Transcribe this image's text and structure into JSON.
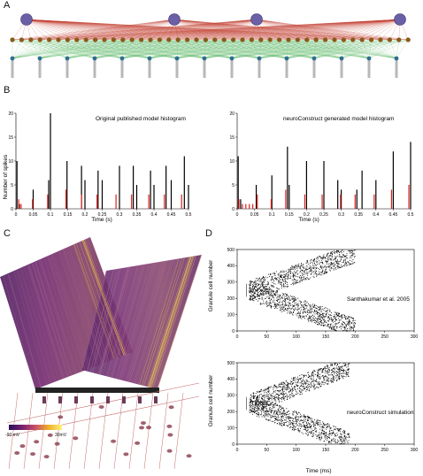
{
  "panels": {
    "a": "A",
    "b": "B",
    "c": "C",
    "d": "D"
  },
  "histograms": [
    {
      "title": "Original published model histogram",
      "ylabel": "Number of spikes",
      "xlabel": "Time (s)",
      "xticks": [
        "0",
        "0.05",
        "0.1",
        "0.15",
        "0.2",
        "0.25",
        "0.3",
        "0.35",
        "0.4",
        "0.45",
        "0.5"
      ],
      "yticks": [
        "0",
        "5",
        "10",
        "15",
        "20"
      ]
    },
    {
      "title": "neuroConstruct generated model histogram",
      "ylabel": "",
      "xlabel": "Time (s)",
      "xticks": [
        "0",
        "0.05",
        "0.1",
        "0.15",
        "0.2",
        "0.25",
        "0.3",
        "0.35",
        "0.4",
        "0.45",
        "0.5"
      ],
      "yticks": [
        "0",
        "5",
        "10",
        "15",
        "20"
      ]
    }
  ],
  "rasters": [
    {
      "title": "Santhakumar et al. 2005",
      "ylabel": "Granule cell number",
      "xlabel": "",
      "xticks": [
        "0",
        "50",
        "100",
        "150",
        "200",
        "250",
        "300"
      ],
      "yticks": [
        "0",
        "100",
        "200",
        "300",
        "400",
        "500"
      ]
    },
    {
      "title": "neuroConstruct simulation",
      "ylabel": "Granule cell number",
      "xlabel": "Time (ms)",
      "xticks": [
        "0",
        "50",
        "100",
        "150",
        "200",
        "250",
        "300"
      ],
      "yticks": [
        "0",
        "100",
        "200",
        "300",
        "400",
        "500"
      ]
    }
  ],
  "colorbar": {
    "min_label": "-90 mV",
    "max_label": "30mV",
    "colors": [
      "#2a0f5e",
      "#7a1f6e",
      "#c8506a",
      "#f0b02a",
      "#fff27a"
    ]
  },
  "chart_data": [
    {
      "type": "bar",
      "title": "Original published model histogram",
      "ylabel": "Number of spikes",
      "xlabel": "Time (s)",
      "xlim": [
        0,
        0.5
      ],
      "ylim": [
        0,
        20
      ],
      "series": [
        {
          "color": "#000000",
          "points": [
            [
              0.003,
              10
            ],
            [
              0.01,
              1
            ],
            [
              0.05,
              4
            ],
            [
              0.1,
              20
            ],
            [
              0.095,
              6
            ],
            [
              0.148,
              10
            ],
            [
              0.19,
              9
            ],
            [
              0.2,
              6
            ],
            [
              0.238,
              8
            ],
            [
              0.25,
              6
            ],
            [
              0.3,
              9
            ],
            [
              0.34,
              9
            ],
            [
              0.35,
              5
            ],
            [
              0.39,
              8
            ],
            [
              0.4,
              5
            ],
            [
              0.435,
              9
            ],
            [
              0.45,
              6
            ],
            [
              0.488,
              11
            ],
            [
              0.5,
              5
            ]
          ]
        },
        {
          "color": "#e0201c",
          "points": [
            [
              0.008,
              2
            ],
            [
              0.015,
              1
            ],
            [
              0.048,
              2
            ],
            [
              0.092,
              3
            ],
            [
              0.145,
              4
            ],
            [
              0.19,
              3
            ],
            [
              0.235,
              3
            ],
            [
              0.29,
              3
            ],
            [
              0.335,
              3
            ],
            [
              0.385,
              3
            ],
            [
              0.43,
              3
            ],
            [
              0.48,
              3
            ]
          ]
        }
      ]
    },
    {
      "type": "bar",
      "title": "neuroConstruct generated model histogram",
      "ylabel": "",
      "xlabel": "Time (s)",
      "xlim": [
        0,
        0.5
      ],
      "ylim": [
        0,
        20
      ],
      "series": [
        {
          "color": "#000000",
          "points": [
            [
              0.003,
              11
            ],
            [
              0.01,
              2
            ],
            [
              0.055,
              5
            ],
            [
              0.1,
              7
            ],
            [
              0.145,
              13
            ],
            [
              0.15,
              5
            ],
            [
              0.2,
              10
            ],
            [
              0.25,
              10
            ],
            [
              0.29,
              6
            ],
            [
              0.3,
              4
            ],
            [
              0.345,
              4
            ],
            [
              0.36,
              8
            ],
            [
              0.4,
              6
            ],
            [
              0.45,
              12
            ],
            [
              0.5,
              14
            ]
          ]
        },
        {
          "color": "#e0201c",
          "points": [
            [
              0.005,
              2
            ],
            [
              0.015,
              1
            ],
            [
              0.025,
              1
            ],
            [
              0.035,
              1
            ],
            [
              0.045,
              1
            ],
            [
              0.058,
              3
            ],
            [
              0.098,
              2
            ],
            [
              0.14,
              4
            ],
            [
              0.195,
              3
            ],
            [
              0.245,
              3
            ],
            [
              0.298,
              3
            ],
            [
              0.34,
              3
            ],
            [
              0.395,
              3
            ],
            [
              0.445,
              4
            ],
            [
              0.495,
              5
            ]
          ]
        }
      ]
    },
    {
      "type": "scatter",
      "title": "Santhakumar et al. 2005",
      "ylabel": "Granule cell number",
      "xlabel": "",
      "xlim": [
        0,
        300
      ],
      "ylim": [
        0,
        500
      ],
      "description_of_pattern": "V-shaped raster: spikes start near 250 cells at ~20 ms and spread to 0 and 500 by ~200 ms"
    },
    {
      "type": "scatter",
      "title": "neuroConstruct simulation",
      "ylabel": "Granule cell number",
      "xlabel": "Time (ms)",
      "xlim": [
        0,
        300
      ],
      "ylim": [
        0,
        500
      ],
      "description_of_pattern": "V-shaped raster: spikes start near 250 cells at ~20 ms and spread to 0 and 500 by ~190 ms"
    }
  ]
}
